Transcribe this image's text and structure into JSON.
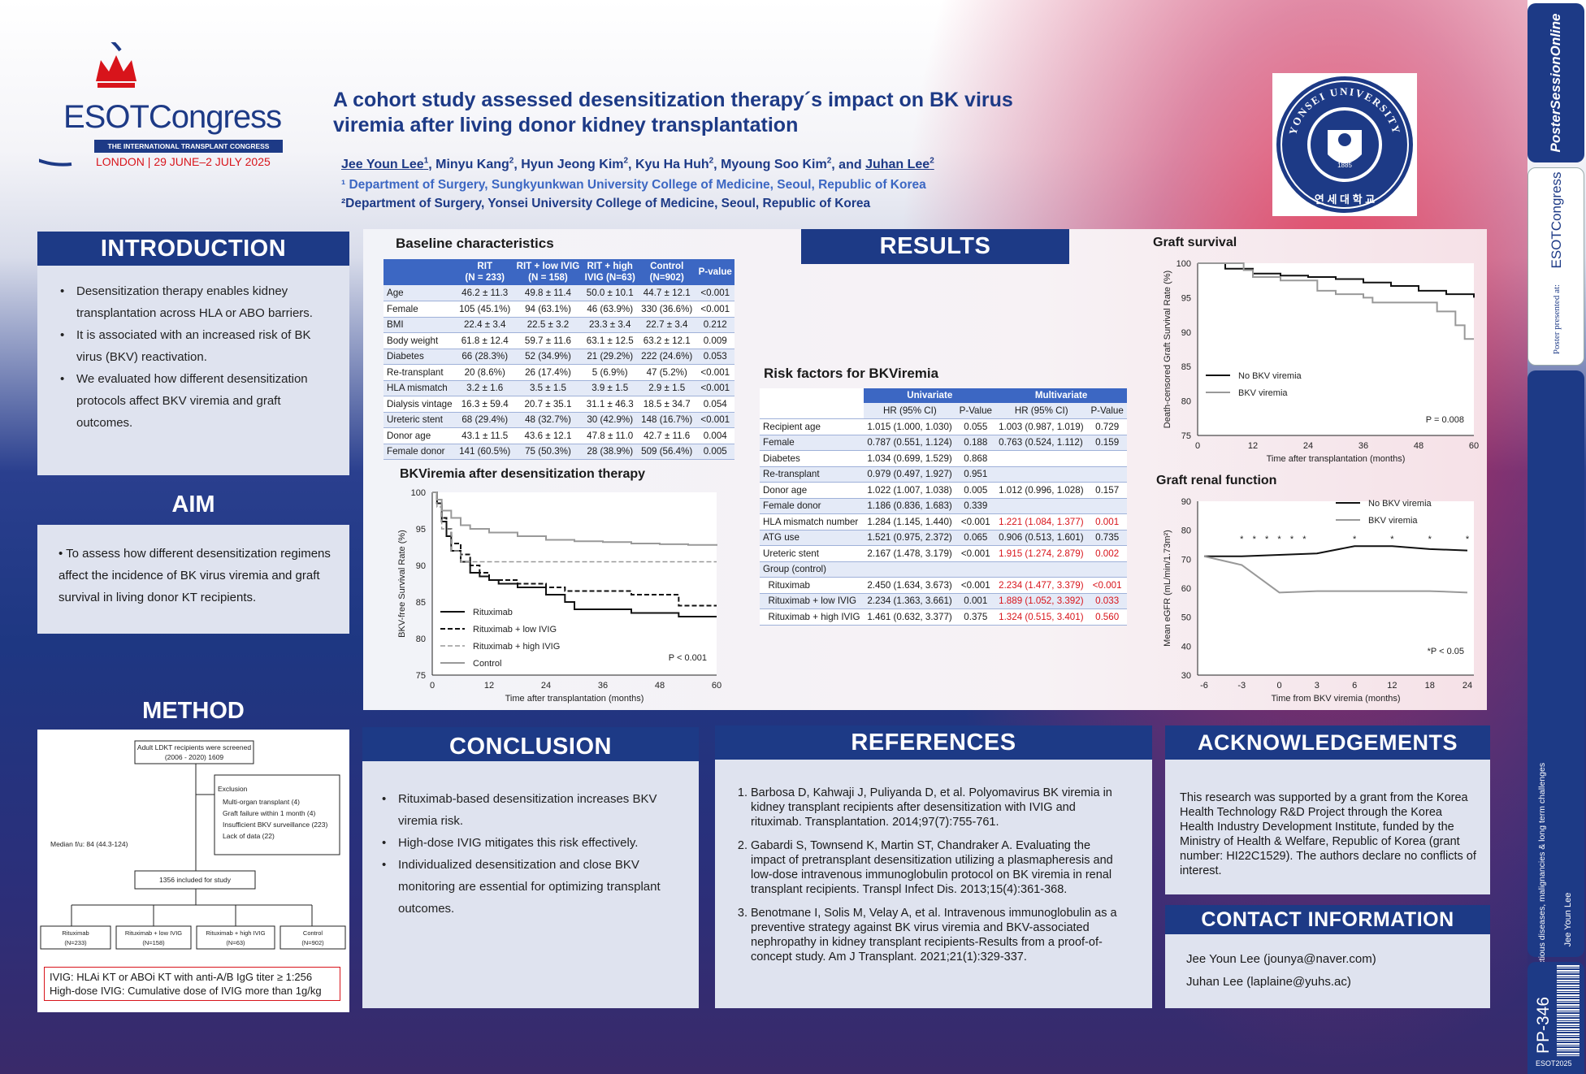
{
  "header": {
    "congress_name": "ESOTCongress",
    "congress_sub": "THE INTERNATIONAL TRANSPLANT CONGRESS",
    "congress_place": "LONDON | 29 JUNE–2 JULY 2025",
    "title_line1": "A cohort study assessed desensitization therapy´s impact on BK virus",
    "title_line2": "viremia after living donor kidney transplantation",
    "authors": [
      {
        "name": "Jee Youn Lee",
        "sup": "1",
        "u": true
      },
      {
        "name": "Minyu Kang",
        "sup": "2",
        "u": false
      },
      {
        "name": "Hyun Jeong Kim",
        "sup": "2",
        "u": false
      },
      {
        "name": "Kyu Ha Huh",
        "sup": "2",
        "u": false
      },
      {
        "name": "Myoung Soo Kim",
        "sup": "2",
        "u": false
      },
      {
        "name": "Juhan Lee",
        "sup": "2",
        "u": true
      }
    ],
    "author_seps": [
      ", ",
      ", ",
      ", ",
      ", ",
      ", and ",
      ""
    ],
    "affil1": "¹ Department of Surgery, Sungkyunkwan University College of Medicine, Seoul, Republic of Korea",
    "affil2": "²Department of Surgery, Yonsei University College of Medicine, Seoul, Republic of Korea",
    "seal_text": "YONSEI UNIVERSITY",
    "seal_year": "1885",
    "seal_korean": "연 세 대 학 교"
  },
  "introduction": {
    "heading": "INTRODUCTION",
    "bullets": [
      "Desensitization therapy enables kidney transplantation across HLA or ABO barriers.",
      "It is associated with an increased risk of BK virus (BKV) reactivation.",
      "We evaluated how different desensitization protocols affect BKV viremia and graft outcomes."
    ]
  },
  "aim": {
    "heading": "AIM",
    "text": "• To assess how different desensitization regimens affect the incidence of BK virus viremia and graft survival in living donor KT recipients."
  },
  "method": {
    "heading": "METHOD",
    "screened": "Adult LDKT recipients were screened",
    "screened2": "(2006 - 2020) 1609",
    "exclusion_title": "Exclusion",
    "exclusions": [
      "Multi-organ transplant (4)",
      "Graft failure within 1 month (4)",
      "Insufficient BKV surveillance (223)",
      "Lack of data (22)"
    ],
    "median": "Median f/u: 84 (44.3-124)",
    "included": "1356 included for study",
    "groups": [
      {
        "n": "Rituximab",
        "c": "(N=233)"
      },
      {
        "n": "Rituximab + low IVIG",
        "c": "(N=158)"
      },
      {
        "n": "Rituximab + high IVIG",
        "c": "(N=63)"
      },
      {
        "n": "Control",
        "c": "(N=902)"
      }
    ],
    "note1": "IVIG: HLAi KT or ABOi KT with anti-A/B IgG titer ≥ 1:256",
    "note2": "High-dose IVIG: Cumulative dose of IVIG more than 1g/kg"
  },
  "baseline": {
    "title": "Baseline characteristics",
    "headers": [
      "",
      "RIT\n(N = 233)",
      "RIT + low IVIG\n(N = 158)",
      "RIT + high\nIVIG (N=63)",
      "Control\n(N=902)",
      "P-value"
    ],
    "rows": [
      [
        "Age",
        "46.2 ± 11.3",
        "49.8 ± 11.4",
        "50.0 ± 10.1",
        "44.7 ± 12.1",
        "<0.001"
      ],
      [
        "Female",
        "105 (45.1%)",
        "94 (63.1%)",
        "46 (63.9%)",
        "330 (36.6%)",
        "<0.001"
      ],
      [
        "BMI",
        "22.4 ± 3.4",
        "22.5 ± 3.2",
        "23.3 ± 3.4",
        "22.7 ± 3.4",
        "0.212"
      ],
      [
        "Body weight",
        "61.8 ± 12.4",
        "59.7 ± 11.6",
        "63.1 ± 12.5",
        "63.2 ± 12.1",
        "0.009"
      ],
      [
        "Diabetes",
        "66 (28.3%)",
        "52 (34.9%)",
        "21 (29.2%)",
        "222 (24.6%)",
        "0.053"
      ],
      [
        "Re-transplant",
        "20 (8.6%)",
        "26 (17.4%)",
        "5 (6.9%)",
        "47 (5.2%)",
        "<0.001"
      ],
      [
        "HLA mismatch",
        "3.2 ± 1.6",
        "3.5 ± 1.5",
        "3.9 ± 1.5",
        "2.9 ± 1.5",
        "<0.001"
      ],
      [
        "Dialysis vintage",
        "16.3 ± 59.4",
        "20.7 ± 35.1",
        "31.1 ± 46.3",
        "18.5 ± 34.7",
        "0.054"
      ],
      [
        "Ureteric stent",
        "68 (29.4%)",
        "48 (32.7%)",
        "30 (42.9%)",
        "148 (16.7%)",
        "<0.001"
      ],
      [
        "Donor age",
        "43.1 ± 11.5",
        "43.6 ± 12.1",
        "47.8 ± 11.0",
        "42.7 ± 11.6",
        "0.004"
      ],
      [
        "Female donor",
        "141 (60.5%)",
        "75 (50.3%)",
        "28 (38.9%)",
        "509 (56.4%)",
        "0.005"
      ]
    ]
  },
  "results": {
    "heading": "RESULTS"
  },
  "risk": {
    "title": "Risk factors for BKViremia",
    "group1": "Univariate",
    "group2": "Multivariate",
    "sub": [
      "HR (95% CI)",
      "P-Value",
      "HR (95% CI)",
      "P-Value"
    ],
    "rows": [
      [
        "Recipient age",
        "1.015 (1.000, 1.030)",
        "0.055",
        "1.003 (0.987, 1.019)",
        "0.729",
        false
      ],
      [
        "Female",
        "0.787 (0.551, 1.124)",
        "0.188",
        "0.763 (0.524, 1.112)",
        "0.159",
        false
      ],
      [
        "Diabetes",
        "1.034 (0.699, 1.529)",
        "0.868",
        "",
        "",
        false
      ],
      [
        "Re-transplant",
        "0.979 (0.497, 1.927)",
        "0.951",
        "",
        "",
        false
      ],
      [
        "Donor age",
        "1.022 (1.007, 1.038)",
        "0.005",
        "1.012 (0.996, 1.028)",
        "0.157",
        false
      ],
      [
        "Female donor",
        "1.186 (0.836, 1.683)",
        "0.339",
        "",
        "",
        false
      ],
      [
        "HLA mismatch number",
        "1.284 (1.145, 1.440)",
        "<0.001",
        "1.221 (1.084, 1.377)",
        "0.001",
        true
      ],
      [
        "ATG use",
        "1.521 (0.975, 2.372)",
        "0.065",
        "0.906 (0.513, 1.601)",
        "0.735",
        false
      ],
      [
        "Ureteric stent",
        "2.167 (1.478, 3.179)",
        "<0.001",
        "1.915 (1.274, 2.879)",
        "0.002",
        true
      ],
      [
        "Group (control)",
        "",
        "",
        "",
        "",
        false
      ],
      [
        "  Rituximab",
        "2.450 (1.634, 3.673)",
        "<0.001",
        "2.234 (1.477, 3.379)",
        "<0.001",
        true
      ],
      [
        "  Rituximab + low IVIG",
        "2.234 (1.363, 3.661)",
        "0.001",
        "1.889 (1.052, 3.392)",
        "0.033",
        true
      ],
      [
        "  Rituximab + high IVIG",
        "1.461 (0.632, 3.377)",
        "0.375",
        "1.324 (0.515, 3.401)",
        "0.560",
        true
      ]
    ]
  },
  "chart_data": [
    {
      "type": "line",
      "title": "BKViremia after desensitization therapy",
      "xlabel": "Time after transplantation (months)",
      "ylabel": "BKV-free Survival Rate (%)",
      "xlim": [
        0,
        60
      ],
      "ylim": [
        75,
        100
      ],
      "xticks": [
        0,
        12,
        24,
        36,
        48,
        60
      ],
      "yticks": [
        75,
        80,
        85,
        90,
        95,
        100
      ],
      "annotation": "P < 0.001",
      "series": [
        {
          "name": "Rituximab",
          "style": "solid-black",
          "x": [
            0,
            1,
            2,
            3,
            4,
            6,
            8,
            10,
            12,
            14,
            18,
            24,
            28,
            30,
            36,
            42,
            48,
            52,
            60
          ],
          "y": [
            100,
            98.5,
            96,
            94,
            92,
            90.5,
            89,
            88.5,
            88,
            87.5,
            87,
            86,
            85,
            84,
            84,
            83.5,
            83.5,
            83,
            83
          ]
        },
        {
          "name": "Rituximab + low IVIG",
          "style": "dashed-black",
          "x": [
            0,
            1,
            2,
            3,
            4,
            6,
            8,
            10,
            12,
            14,
            18,
            24,
            28,
            30,
            36,
            42,
            48,
            52,
            60
          ],
          "y": [
            100,
            98.5,
            96.5,
            95,
            93,
            91.5,
            90,
            89,
            88,
            88,
            87.5,
            87,
            86.5,
            86.5,
            86.5,
            86,
            86,
            84.5,
            84.5
          ]
        },
        {
          "name": "Rituximab + high IVIG",
          "style": "dashed-gray",
          "x": [
            0,
            1,
            2,
            4,
            6,
            8,
            12,
            24,
            36,
            48,
            60
          ],
          "y": [
            100,
            98,
            95,
            92,
            90.5,
            90.5,
            90.5,
            90.5,
            90.5,
            90.5,
            90.5
          ]
        },
        {
          "name": "Control",
          "style": "solid-gray",
          "x": [
            0,
            1,
            2,
            4,
            6,
            8,
            12,
            18,
            24,
            30,
            36,
            42,
            48,
            54,
            60
          ],
          "y": [
            100,
            99,
            97.5,
            96.5,
            95.5,
            95,
            94.5,
            94,
            93.5,
            93.3,
            93.2,
            93,
            92.9,
            92.8,
            92.7
          ]
        }
      ]
    },
    {
      "type": "line",
      "title": "Graft survival",
      "xlabel": "Time after transplantation (months)",
      "ylabel": "Death-censored Graft Survival Rate (%)",
      "xlim": [
        0,
        60
      ],
      "ylim": [
        75,
        100
      ],
      "xticks": [
        0,
        12,
        24,
        36,
        48,
        60
      ],
      "yticks": [
        75,
        80,
        85,
        90,
        95,
        100
      ],
      "annotation": "P = 0.008",
      "series": [
        {
          "name": "No BKV viremia",
          "style": "solid-black",
          "x": [
            0,
            6,
            12,
            18,
            24,
            30,
            36,
            42,
            48,
            54,
            60
          ],
          "y": [
            100,
            99.2,
            98.5,
            98.2,
            98,
            97.7,
            97.2,
            96.7,
            96,
            95.5,
            95
          ]
        },
        {
          "name": "BKV viremia",
          "style": "solid-gray",
          "x": [
            0,
            6,
            10,
            12,
            18,
            24,
            26,
            30,
            36,
            38,
            48,
            52,
            56,
            58,
            60
          ],
          "y": [
            100,
            100,
            99,
            98,
            97.5,
            97.5,
            96,
            95.5,
            95,
            94.3,
            94.3,
            93,
            91,
            89,
            89
          ]
        }
      ]
    },
    {
      "type": "line",
      "title": "Graft renal function",
      "xlabel": "Time from BKV viremia (months)",
      "ylabel": "Mean eGFR (mL/min/1.73m²)",
      "xticks": [
        "-6",
        "-3",
        "0",
        "3",
        "6",
        "12",
        "18",
        "24"
      ],
      "ylim": [
        30,
        90
      ],
      "yticks": [
        30,
        40,
        50,
        60,
        70,
        80,
        90
      ],
      "annotation": "*P < 0.05",
      "series": [
        {
          "name": "No BKV viremia",
          "style": "solid-black",
          "x": [
            "-6",
            "-3",
            "0",
            "3",
            "6",
            "12",
            "18",
            "24"
          ],
          "y": [
            71,
            71,
            71.5,
            72,
            74.5,
            74.5,
            73.5,
            73
          ]
        },
        {
          "name": "BKV viremia",
          "style": "solid-gray",
          "x": [
            "-6",
            "-3",
            "0",
            "3",
            "6",
            "12",
            "18",
            "24"
          ],
          "y": [
            71,
            68,
            58.5,
            59,
            59,
            59,
            59,
            58.5
          ]
        }
      ],
      "significant_at": [
        "-3",
        "-2",
        "-1",
        "0",
        "1",
        "2",
        "6",
        "12",
        "18",
        "24"
      ]
    }
  ],
  "conclusion": {
    "heading": "CONCLUSION",
    "bullets": [
      "Rituximab-based desensitization increases BKV viremia risk.",
      "High-dose IVIG mitigates this risk effectively.",
      "Individualized desensitization and close BKV monitoring are essential for optimizing transplant outcomes."
    ]
  },
  "references": {
    "heading": "REFERENCES",
    "items": [
      "Barbosa D, Kahwaji J, Puliyanda D, et al. Polyomavirus BK viremia in kidney transplant recipients after desensitization with IVIG and rituximab. Transplantation. 2014;97(7):755-761.",
      "Gabardi S, Townsend K, Martin ST, Chandraker A. Evaluating the impact of pretransplant desensitization utilizing a plasmapheresis and low-dose intravenous immunoglobulin protocol on BK viremia in renal transplant recipients. Transpl Infect Dis. 2013;15(4):361-368.",
      "Benotmane I, Solis M, Velay A, et al. Intravenous immunoglobulin as a preventive strategy against BK virus viremia and BKV-associated nephropathy in kidney transplant recipients-Results from a proof-of-concept study. Am J Transplant. 2021;21(1):329-337."
    ]
  },
  "acknowledgements": {
    "heading": "ACKNOWLEDGEMENTS",
    "text": "This research was supported by a grant from the Korea Health Technology R&D Project through the Korea Health Industry Development Institute, funded by the Ministry of Health & Welfare, Republic of Korea (grant number: HI22C1529). The authors declare no conflicts of interest."
  },
  "contact": {
    "heading": "CONTACT INFORMATION",
    "lines": [
      "Jee Youn Lee (jounya@naver.com)",
      "Juhan Lee (laplaine@yuhs.ac)"
    ]
  },
  "sidebar": {
    "brand": "PosterSessionOnline",
    "presented": "Poster presented at:",
    "esot": "ESOTCongress",
    "category": "Infectious diseases, malignancies & long term challenges",
    "author": "Jee Youn Lee",
    "code": "PP-346",
    "year": "ESOT2025"
  },
  "colors": {
    "navy": "#1d3a86",
    "table_header": "#3c67c3",
    "red": "#d8141b"
  }
}
